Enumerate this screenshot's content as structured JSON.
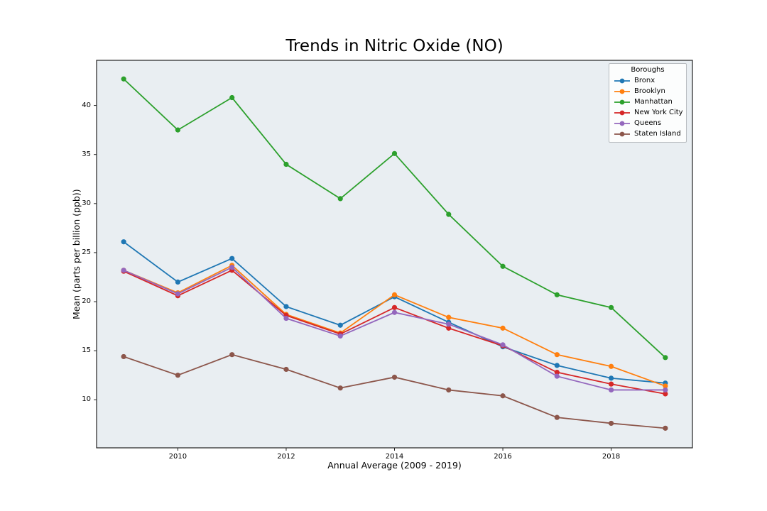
{
  "chart_data": {
    "type": "line",
    "title": "Trends in Nitric Oxide (NO)",
    "xlabel": "Annual Average (2009 - 2019)",
    "ylabel": "Mean (parts per billion (ppb))",
    "x": [
      2009,
      2010,
      2011,
      2012,
      2013,
      2014,
      2015,
      2016,
      2017,
      2018,
      2019
    ],
    "series": [
      {
        "name": "Bronx",
        "color": "#1f77b4",
        "values": [
          26.1,
          22.0,
          24.4,
          19.5,
          17.6,
          20.5,
          17.9,
          15.4,
          13.5,
          12.2,
          11.7
        ]
      },
      {
        "name": "Brooklyn",
        "color": "#ff7f0e",
        "values": [
          23.2,
          20.9,
          23.7,
          18.7,
          16.8,
          20.7,
          18.4,
          17.3,
          14.6,
          13.4,
          11.4
        ]
      },
      {
        "name": "Manhattan",
        "color": "#2ca02c",
        "values": [
          42.7,
          37.5,
          40.8,
          34.0,
          30.5,
          35.1,
          28.9,
          23.6,
          20.7,
          19.4,
          14.3
        ]
      },
      {
        "name": "New York City",
        "color": "#d62728",
        "values": [
          23.1,
          20.6,
          23.2,
          18.6,
          16.7,
          19.4,
          17.3,
          15.5,
          12.8,
          11.6,
          10.6
        ]
      },
      {
        "name": "Queens",
        "color": "#9467bd",
        "values": [
          23.2,
          20.8,
          23.5,
          18.3,
          16.5,
          18.9,
          17.7,
          15.6,
          12.4,
          11.0,
          11.0
        ]
      },
      {
        "name": "Staten Island",
        "color": "#8c564b",
        "values": [
          14.4,
          12.5,
          14.6,
          13.1,
          11.2,
          12.3,
          11.0,
          10.4,
          8.2,
          7.6,
          7.1
        ]
      }
    ],
    "xticks": [
      2010,
      2012,
      2014,
      2016,
      2018
    ],
    "yticks": [
      10,
      15,
      20,
      25,
      30,
      35,
      40
    ],
    "xlim": [
      2008.5,
      2019.5
    ],
    "ylim": [
      5.1,
      44.6
    ],
    "grid": false,
    "legend": {
      "title": "Boroughs",
      "position": "upper right"
    }
  },
  "style": {
    "axes_bg": "#e9eef2",
    "fig_bg": "#ffffff",
    "spine_color": "#222222",
    "text_color": "#000000"
  }
}
